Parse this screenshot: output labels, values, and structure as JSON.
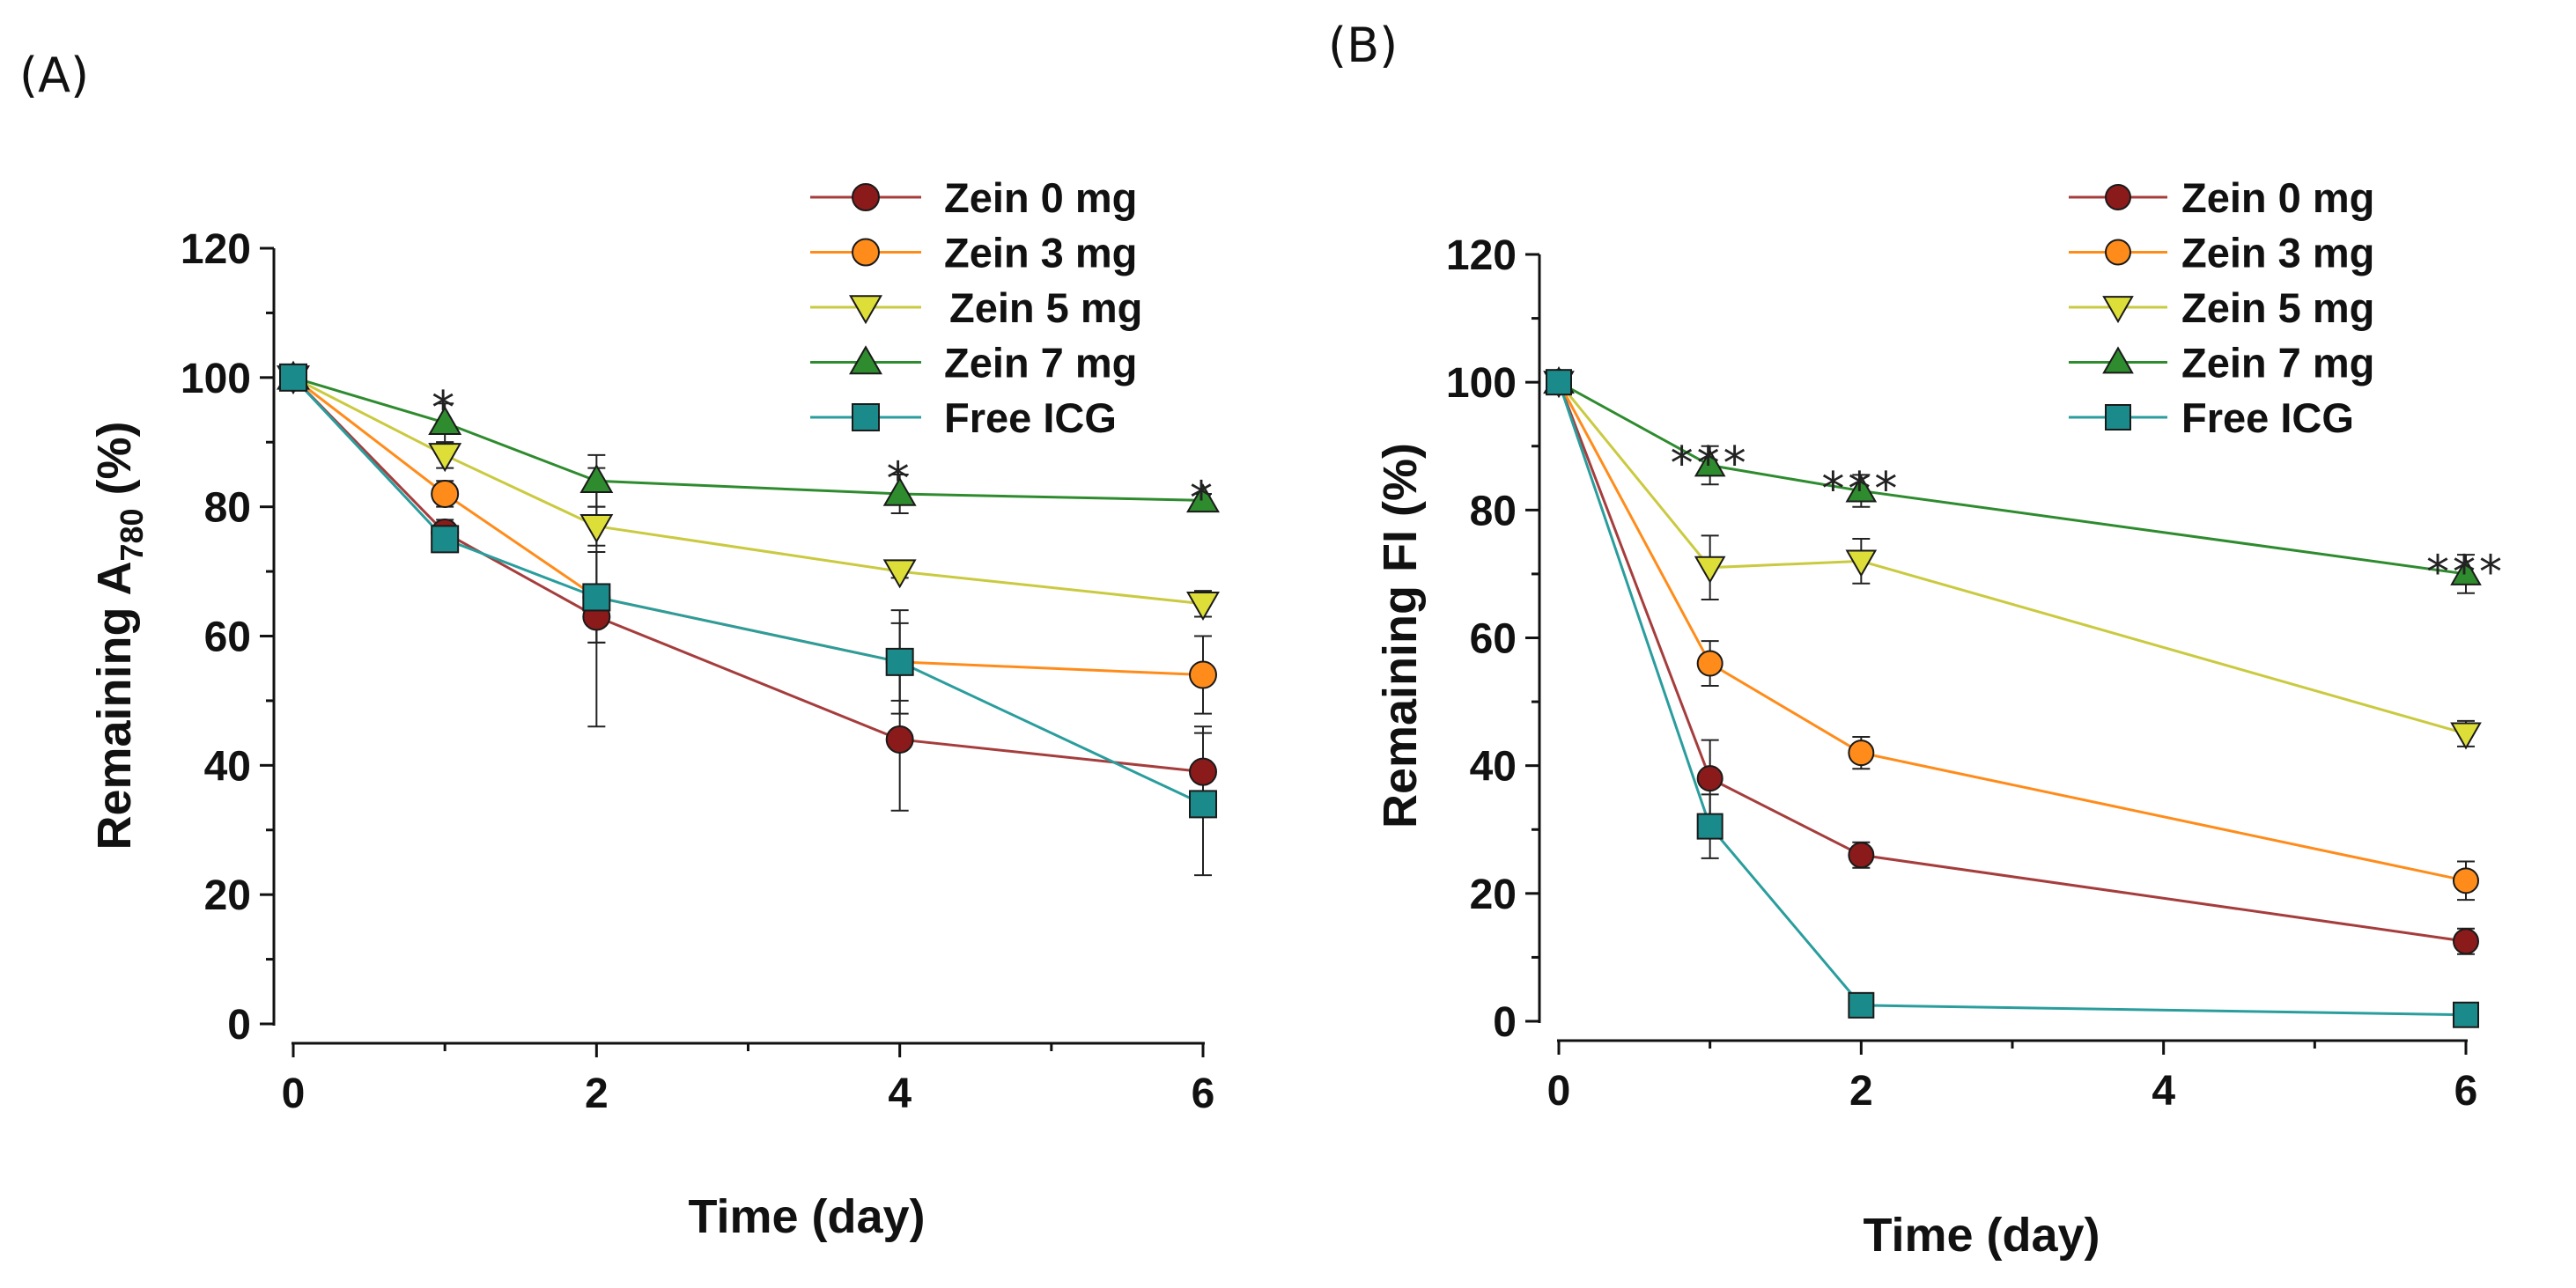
{
  "figure": {
    "panel_labels": [
      "(A)",
      "(B)"
    ]
  },
  "series_styles": [
    {
      "name": "Zein 0 mg",
      "color": "#8b1a1a",
      "line": "#a63d3d",
      "marker": "circle"
    },
    {
      "name": "Zein 3 mg",
      "color": "#ff8c1a",
      "line": "#ff8c1a",
      "marker": "circle"
    },
    {
      "name": "Zein 5 mg",
      "color": "#dede38",
      "line": "#caca40",
      "marker": "triangle-down"
    },
    {
      "name": "Zein 7 mg",
      "color": "#2e8b2e",
      "line": "#2e8b2e",
      "marker": "triangle-up"
    },
    {
      "name": "Free ICG",
      "color": "#1b8a8a",
      "line": "#2a9d9d",
      "marker": "square"
    }
  ],
  "chart_data": [
    {
      "type": "line",
      "panel": "(A)",
      "xlabel": "Time (day)",
      "ylabel": "Remaining A780 (%)",
      "ylabel_main": "Remaining A",
      "ylabel_sub": "780",
      "ylabel_suffix": " (%)",
      "xlim": [
        0,
        6
      ],
      "ylim": [
        0,
        120
      ],
      "xticks": [
        0,
        2,
        4,
        6
      ],
      "yticks": [
        0,
        20,
        40,
        60,
        80,
        100,
        120
      ],
      "legend_position": "top-right",
      "series": [
        {
          "name": "Zein 0 mg",
          "x": [
            0,
            1,
            2,
            4,
            6
          ],
          "y": [
            100,
            76,
            63,
            44,
            39
          ],
          "err": [
            0,
            2,
            4,
            11,
            7
          ]
        },
        {
          "name": "Zein 3 mg",
          "x": [
            0,
            1,
            2,
            4,
            6
          ],
          "y": [
            100,
            82,
            66,
            56,
            54
          ],
          "err": [
            0,
            2,
            7,
            8,
            6
          ]
        },
        {
          "name": "Zein 5 mg",
          "x": [
            0,
            1,
            2,
            4,
            6
          ],
          "y": [
            100,
            88,
            77,
            70,
            65
          ],
          "err": [
            0,
            2,
            3,
            1,
            2
          ]
        },
        {
          "name": "Zein 7 mg",
          "x": [
            0,
            1,
            2,
            4,
            6
          ],
          "y": [
            100,
            93,
            84,
            82,
            81
          ],
          "err": [
            0,
            3,
            4,
            3,
            1
          ]
        },
        {
          "name": "Free ICG",
          "x": [
            0,
            1,
            2,
            4,
            6
          ],
          "y": [
            100,
            75,
            66,
            56,
            34
          ],
          "err": [
            0,
            1,
            20,
            6,
            11
          ]
        }
      ],
      "annotations": [
        {
          "text": "*",
          "x": 1,
          "y": 97
        },
        {
          "text": "*",
          "x": 4,
          "y": 86
        },
        {
          "text": "*",
          "x": 6,
          "y": 83
        }
      ]
    },
    {
      "type": "line",
      "panel": "(B)",
      "xlabel": "Time (day)",
      "ylabel": "Remaining FI (%)",
      "xlim": [
        0,
        6
      ],
      "ylim": [
        0,
        120
      ],
      "xticks": [
        0,
        2,
        4,
        6
      ],
      "yticks": [
        0,
        20,
        40,
        60,
        80,
        100,
        120
      ],
      "legend_position": "top-right",
      "series": [
        {
          "name": "Zein 0 mg",
          "x": [
            0,
            1,
            2,
            6
          ],
          "y": [
            100,
            38,
            26,
            12.5
          ],
          "err": [
            0,
            6,
            2,
            2
          ]
        },
        {
          "name": "Zein 3 mg",
          "x": [
            0,
            1,
            2,
            6
          ],
          "y": [
            100,
            56,
            42,
            22
          ],
          "err": [
            0,
            3.5,
            2.5,
            3
          ]
        },
        {
          "name": "Zein 5 mg",
          "x": [
            0,
            1,
            2,
            6
          ],
          "y": [
            100,
            71,
            72,
            45
          ],
          "err": [
            0,
            5,
            3.5,
            2
          ]
        },
        {
          "name": "Zein 7 mg",
          "x": [
            0,
            1,
            2,
            6
          ],
          "y": [
            100,
            87,
            83,
            70
          ],
          "err": [
            0,
            3,
            2.5,
            3
          ]
        },
        {
          "name": "Free ICG",
          "x": [
            0,
            1,
            2,
            6
          ],
          "y": [
            100,
            30.5,
            2.5,
            1
          ],
          "err": [
            0,
            5,
            0.5,
            0.3
          ]
        }
      ],
      "annotations": [
        {
          "text": "***",
          "x": 1,
          "y": 89
        },
        {
          "text": "***",
          "x": 2,
          "y": 85
        },
        {
          "text": "***",
          "x": 6,
          "y": 72
        }
      ]
    }
  ]
}
